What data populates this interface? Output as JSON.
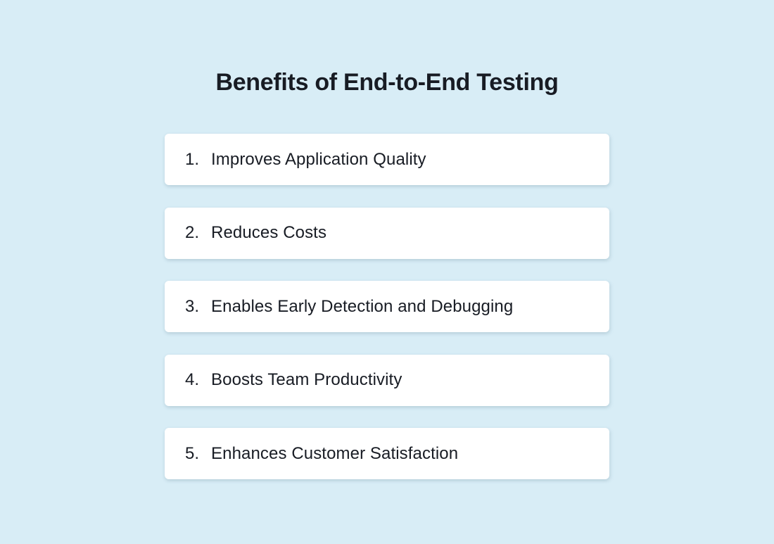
{
  "title": "Benefits of End-to-End Testing",
  "items": [
    {
      "number": "1.",
      "label": "Improves Application Quality"
    },
    {
      "number": "2.",
      "label": "Reduces Costs"
    },
    {
      "number": "3.",
      "label": "Enables Early Detection and Debugging"
    },
    {
      "number": "4.",
      "label": "Boosts Team Productivity"
    },
    {
      "number": "5.",
      "label": "Enhances Customer Satisfaction"
    }
  ],
  "colors": {
    "background": "#D8EDF6",
    "card_background": "#FFFFFF",
    "text": "#181C24"
  }
}
